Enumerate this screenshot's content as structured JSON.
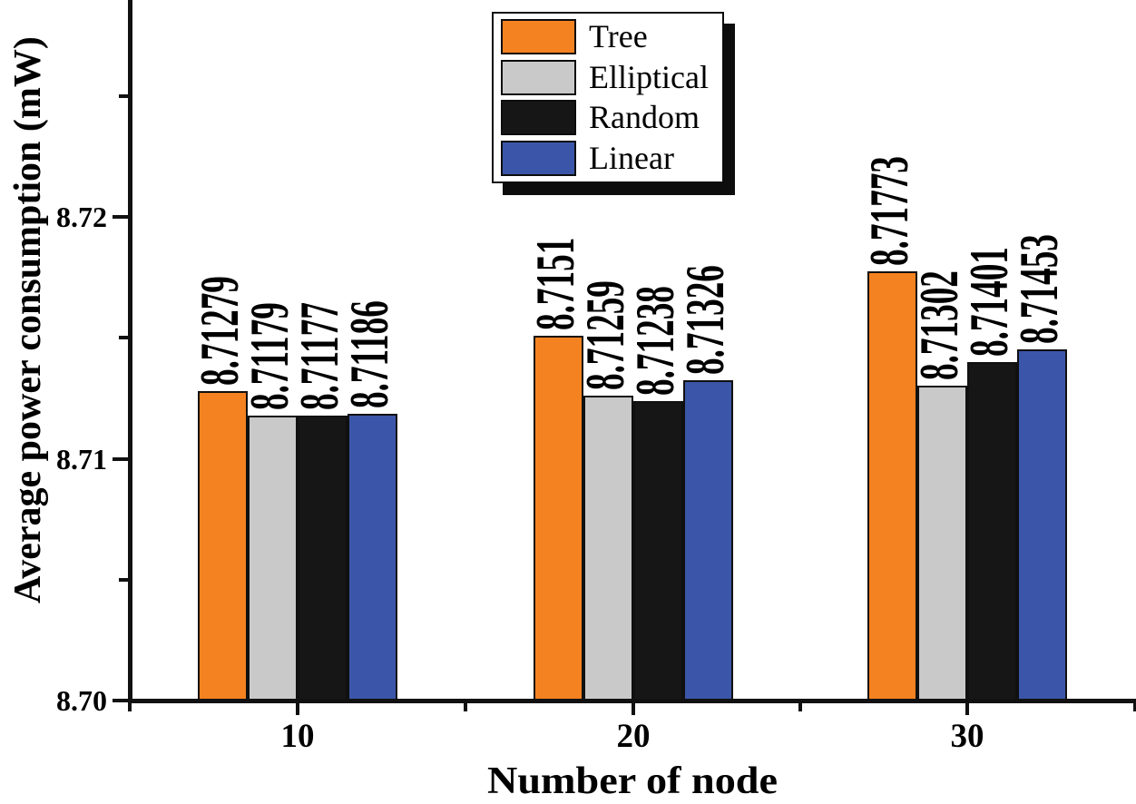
{
  "figure": {
    "background": "#ffffff",
    "axis_color": "#111111",
    "text_color": "#000000"
  },
  "chart_data": {
    "type": "bar",
    "title": "",
    "xlabel": "Number of node",
    "ylabel": "Average power consumption (mW)",
    "categories": [
      "10",
      "20",
      "30"
    ],
    "series": [
      {
        "name": "Tree",
        "color": "#F58220",
        "values": [
          8.71279,
          8.7151,
          8.71773
        ],
        "bar_labels": [
          "8.71279",
          "8.7151",
          "8.71773"
        ]
      },
      {
        "name": "Elliptical",
        "color": "#C9C9C9",
        "values": [
          8.71179,
          8.71259,
          8.71302
        ],
        "bar_labels": [
          "8.71179",
          "8.71259",
          "8.71302"
        ]
      },
      {
        "name": "Random",
        "color": "#161616",
        "values": [
          8.71177,
          8.71238,
          8.71401
        ],
        "bar_labels": [
          "8.71177",
          "8.71238",
          "8.71401"
        ]
      },
      {
        "name": "Linear",
        "color": "#3B56A8",
        "values": [
          8.71186,
          8.71326,
          8.71453
        ],
        "bar_labels": [
          "8.71186",
          "8.71326",
          "8.71453"
        ]
      }
    ],
    "y_axis": {
      "min": 8.7,
      "max": 8.729,
      "major_ticks": [
        {
          "value": 8.7,
          "label": "8.70"
        },
        {
          "value": 8.71,
          "label": "8.71"
        },
        {
          "value": 8.72,
          "label": "8.72"
        }
      ],
      "minor_ticks": [
        8.705,
        8.715,
        8.725
      ]
    },
    "legend": {
      "position": "top-center",
      "entries": [
        "Tree",
        "Elliptical",
        "Random",
        "Linear"
      ]
    },
    "grid": false
  }
}
